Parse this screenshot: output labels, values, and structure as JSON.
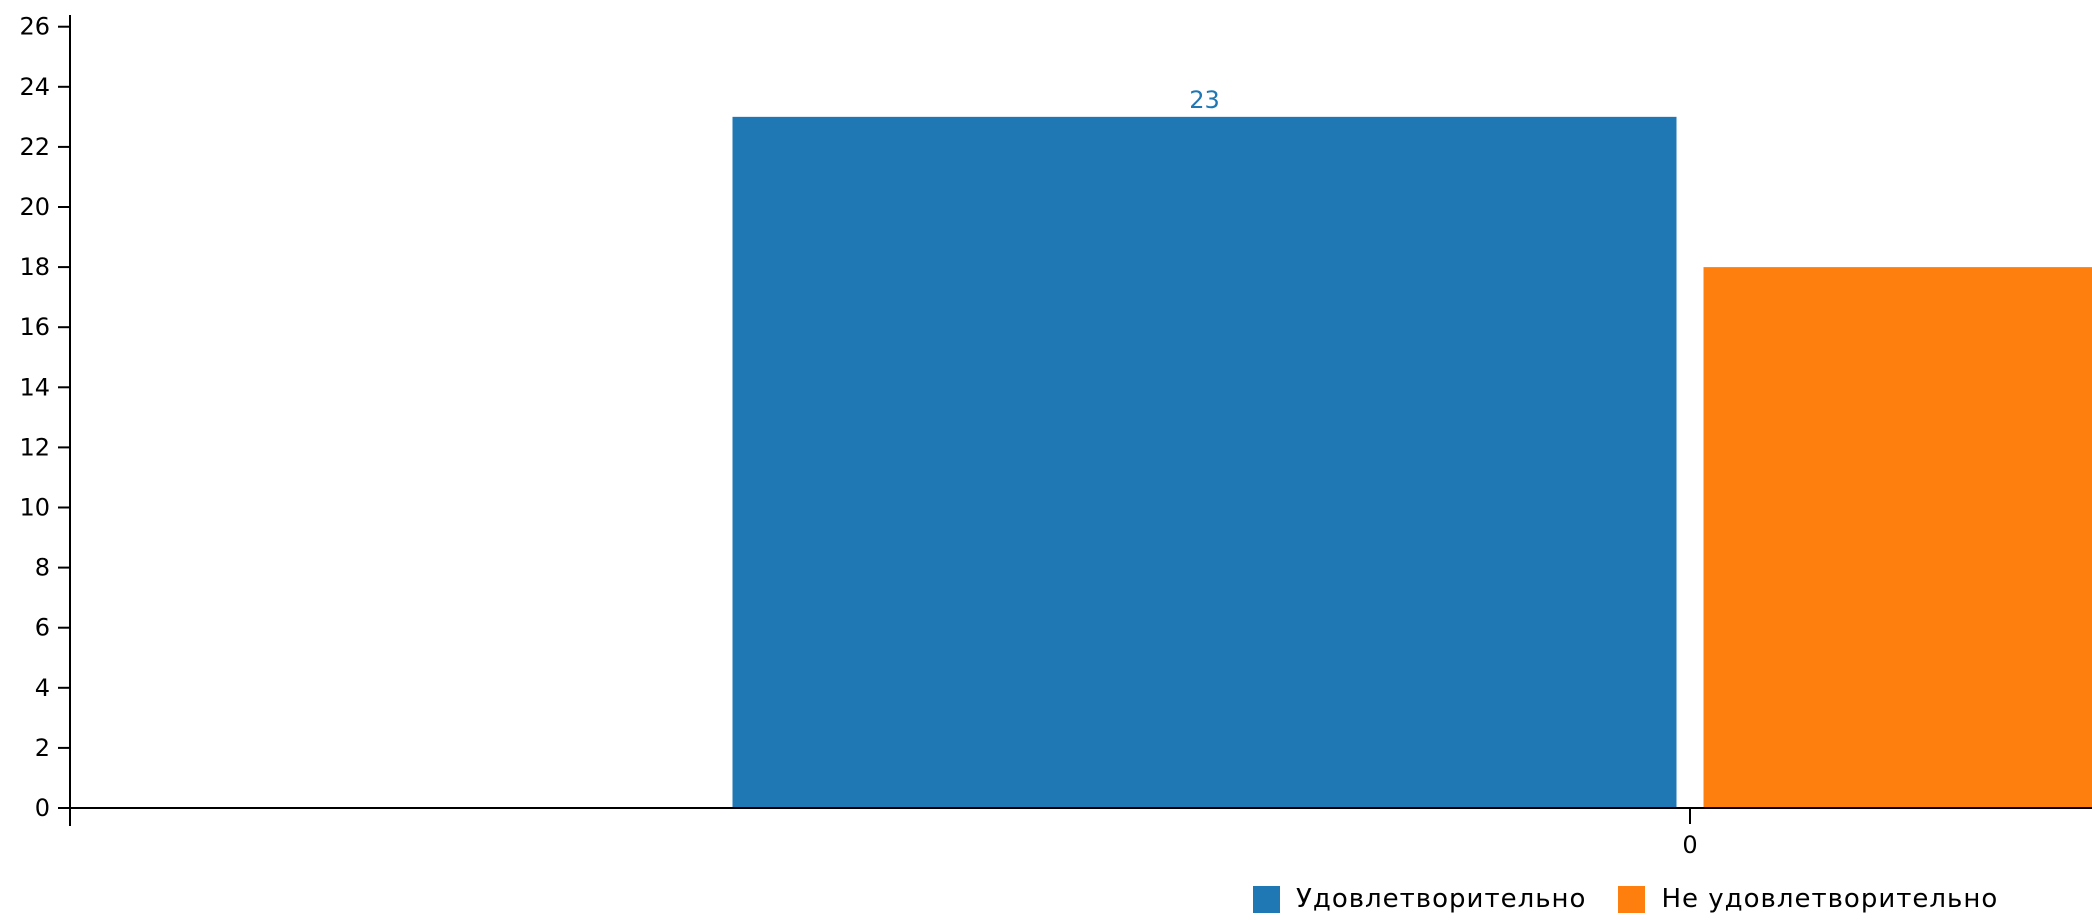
{
  "chart_data": {
    "type": "bar",
    "categories": [
      "0"
    ],
    "series": [
      {
        "name": "Удовлетворительно",
        "values": [
          23
        ],
        "color": "#1f77b4",
        "data_label": "23"
      },
      {
        "name": "Не удовлетворительно",
        "values": [
          18
        ],
        "color": "#ff7f0e"
      }
    ],
    "y_ticks": [
      "0",
      "2",
      "4",
      "6",
      "8",
      "10",
      "12",
      "14",
      "16",
      "18",
      "20",
      "22",
      "24",
      "26"
    ],
    "ylim": [
      0,
      26
    ],
    "title": "",
    "xlabel": "",
    "ylabel": "",
    "grid": false,
    "legend_position": "bottom"
  }
}
